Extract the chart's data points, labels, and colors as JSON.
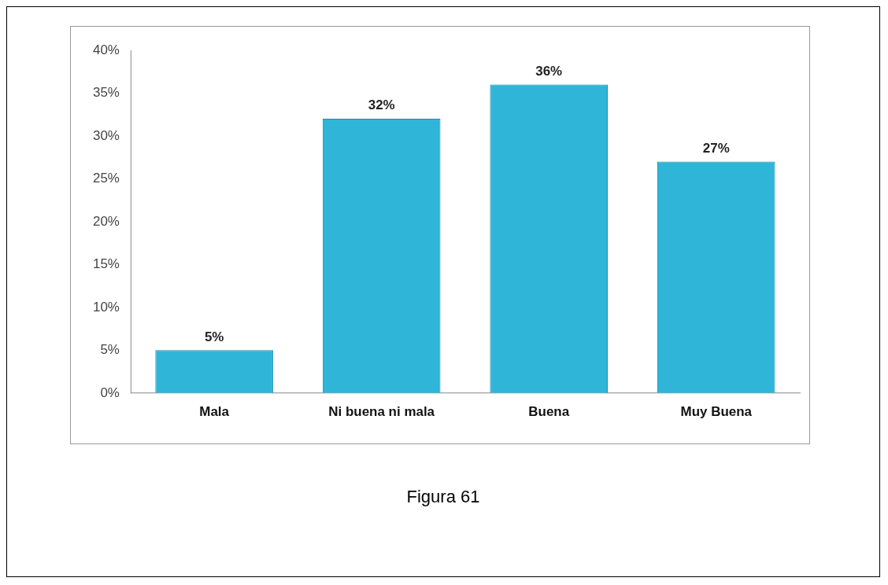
{
  "chart_data": {
    "type": "bar",
    "categories": [
      "Mala",
      "Ni buena ni mala",
      "Buena",
      "Muy Buena"
    ],
    "values": [
      5,
      32,
      36,
      27
    ],
    "color": "#2fb5d8",
    "value_labels": [
      "5%",
      "32%",
      "36%",
      "27%"
    ],
    "ylim": [
      0,
      40
    ],
    "yticks": [
      {
        "value": 0,
        "label": "0%"
      },
      {
        "value": 5,
        "label": "5%"
      },
      {
        "value": 10,
        "label": "10%"
      },
      {
        "value": 15,
        "label": "15%"
      },
      {
        "value": 20,
        "label": "20%"
      },
      {
        "value": 25,
        "label": "25%"
      },
      {
        "value": 30,
        "label": "30%"
      },
      {
        "value": 35,
        "label": "35%"
      },
      {
        "value": 40,
        "label": "40%"
      }
    ],
    "grid": false,
    "legend": false,
    "annotations": [
      "Figura 61"
    ]
  }
}
